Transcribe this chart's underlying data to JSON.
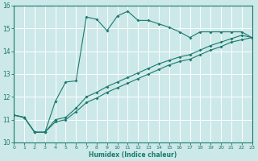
{
  "xlabel": "Humidex (Indice chaleur)",
  "xlim": [
    0,
    23
  ],
  "ylim": [
    10,
    16
  ],
  "yticks": [
    10,
    11,
    12,
    13,
    14,
    15,
    16
  ],
  "xticks": [
    0,
    1,
    2,
    3,
    4,
    5,
    6,
    7,
    8,
    9,
    10,
    11,
    12,
    13,
    14,
    15,
    16,
    17,
    18,
    19,
    20,
    21,
    22,
    23
  ],
  "bg_color": "#cce8e8",
  "grid_major_color": "#b0d0d0",
  "grid_minor_color": "#ffffff",
  "line_color": "#1a7a6e",
  "line1_x": [
    0,
    1,
    2,
    3,
    4,
    5,
    6,
    7,
    8,
    9,
    10,
    11,
    12,
    13,
    14,
    15,
    16,
    17,
    18,
    19,
    20,
    21,
    22,
    23
  ],
  "line1_y": [
    11.2,
    11.1,
    10.45,
    10.45,
    11.8,
    12.65,
    12.7,
    15.5,
    15.4,
    14.9,
    15.55,
    15.75,
    15.35,
    15.35,
    15.2,
    15.05,
    14.85,
    14.6,
    14.85,
    14.85,
    14.85,
    14.85,
    14.85,
    14.6
  ],
  "line2_x": [
    0,
    1,
    2,
    3,
    4,
    5,
    6,
    7,
    8,
    9,
    10,
    11,
    12,
    13,
    14,
    15,
    16,
    17,
    18,
    19,
    20,
    21,
    22,
    23
  ],
  "line2_y": [
    11.2,
    11.1,
    10.45,
    10.45,
    11.0,
    11.1,
    11.5,
    12.0,
    12.2,
    12.45,
    12.65,
    12.85,
    13.05,
    13.25,
    13.45,
    13.6,
    13.75,
    13.85,
    14.05,
    14.25,
    14.4,
    14.55,
    14.7,
    14.6
  ],
  "line3_x": [
    0,
    1,
    2,
    3,
    4,
    5,
    6,
    7,
    8,
    9,
    10,
    11,
    12,
    13,
    14,
    15,
    16,
    17,
    18,
    19,
    20,
    21,
    22,
    23
  ],
  "line3_y": [
    11.2,
    11.1,
    10.45,
    10.45,
    10.9,
    11.0,
    11.35,
    11.75,
    11.95,
    12.2,
    12.4,
    12.6,
    12.8,
    13.0,
    13.2,
    13.4,
    13.55,
    13.65,
    13.85,
    14.05,
    14.2,
    14.4,
    14.5,
    14.6
  ]
}
